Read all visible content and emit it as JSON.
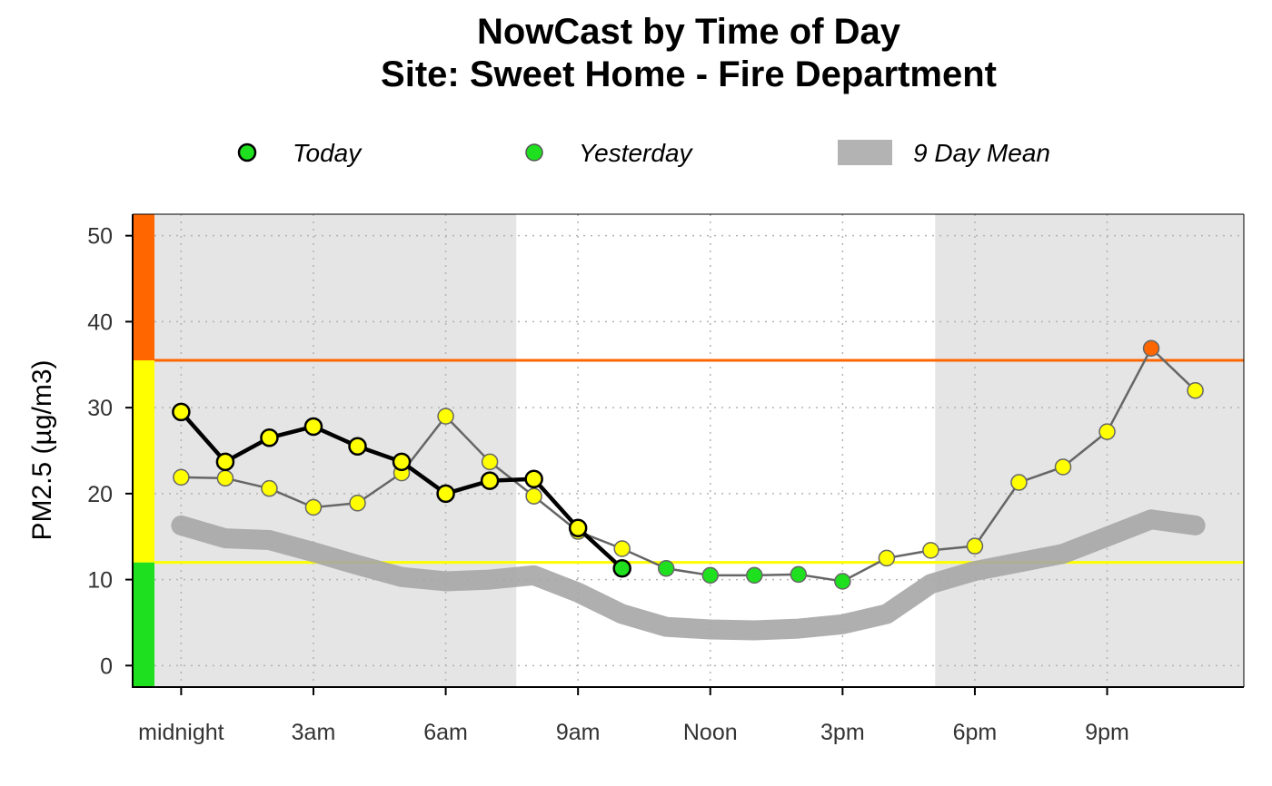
{
  "chart_data": {
    "type": "line",
    "title": "NowCast by Time of Day",
    "subtitle": "Site: Sweet Home - Fire Department",
    "ylabel": "PM2.5 (µg/m3)",
    "xlabel": "",
    "xlim": [
      -1.1,
      24.1
    ],
    "ylim": [
      -2.5,
      52.5
    ],
    "y_ticks": [
      0,
      10,
      20,
      30,
      40,
      50
    ],
    "x_ticks": [
      {
        "hour": 0,
        "label": "midnight"
      },
      {
        "hour": 3,
        "label": "3am"
      },
      {
        "hour": 6,
        "label": "6am"
      },
      {
        "hour": 9,
        "label": "9am"
      },
      {
        "hour": 12,
        "label": "Noon"
      },
      {
        "hour": 15,
        "label": "3pm"
      },
      {
        "hour": 18,
        "label": "6pm"
      },
      {
        "hour": 21,
        "label": "9pm"
      }
    ],
    "grid": true,
    "legend_position": "top",
    "night_shading": [
      {
        "from_hour": -1.1,
        "to_hour": 7.6
      },
      {
        "from_hour": 17.1,
        "to_hour": 24.1
      }
    ],
    "aqi_bands": [
      {
        "from": -2.5,
        "to": 12,
        "color": "#1fe01f"
      },
      {
        "from": 12,
        "to": 35.5,
        "color": "#ffff00"
      },
      {
        "from": 35.5,
        "to": 52.5,
        "color": "#ff6600"
      }
    ],
    "threshold_lines": [
      {
        "value": 12,
        "color": "#ffff00"
      },
      {
        "value": 35.5,
        "color": "#ff6600"
      }
    ],
    "series": [
      {
        "name": "9 Day Mean",
        "style": "band",
        "color": "#a6a6a6",
        "hours": [
          0,
          1,
          2,
          3,
          4,
          5,
          6,
          7,
          8,
          9,
          10,
          11,
          12,
          13,
          14,
          15,
          16,
          17,
          18,
          19,
          20,
          21,
          22,
          23
        ],
        "values": [
          16.3,
          14.8,
          14.6,
          13.2,
          11.7,
          10.3,
          9.8,
          10.0,
          10.5,
          8.5,
          6.0,
          4.5,
          4.2,
          4.1,
          4.3,
          4.8,
          6.0,
          9.5,
          11.0,
          12.0,
          13.0,
          15.0,
          17.0,
          16.3
        ]
      },
      {
        "name": "Yesterday",
        "style": "thin-line",
        "hours": [
          0,
          1,
          2,
          3,
          4,
          5,
          6,
          7,
          8,
          9,
          10,
          11,
          12,
          13,
          14,
          15,
          16,
          17,
          18,
          19,
          20,
          21,
          22,
          23
        ],
        "values": [
          21.9,
          21.8,
          20.6,
          18.4,
          18.9,
          22.4,
          29.0,
          23.7,
          19.7,
          15.6,
          13.6,
          11.3,
          10.5,
          10.5,
          10.6,
          9.8,
          12.5,
          13.4,
          13.9,
          21.3,
          23.1,
          27.2,
          36.9,
          32.0
        ]
      },
      {
        "name": "Today",
        "style": "thick-line",
        "hours": [
          0,
          1,
          2,
          3,
          4,
          5,
          6,
          7,
          8,
          9,
          10
        ],
        "values": [
          29.5,
          23.7,
          26.5,
          27.8,
          25.5,
          23.7,
          20.0,
          21.5,
          21.7,
          16.0,
          11.3
        ]
      }
    ],
    "legend": [
      {
        "label": "Today",
        "symbol": "point-thick"
      },
      {
        "label": "Yesterday",
        "symbol": "point-thin"
      },
      {
        "label": "9 Day Mean",
        "symbol": "band"
      }
    ],
    "colors": {
      "good": "#1fe01f",
      "moderate": "#ffff00",
      "usg": "#ff6600",
      "night": "#e5e5e5",
      "mean_band": "#a6a6a6"
    }
  }
}
